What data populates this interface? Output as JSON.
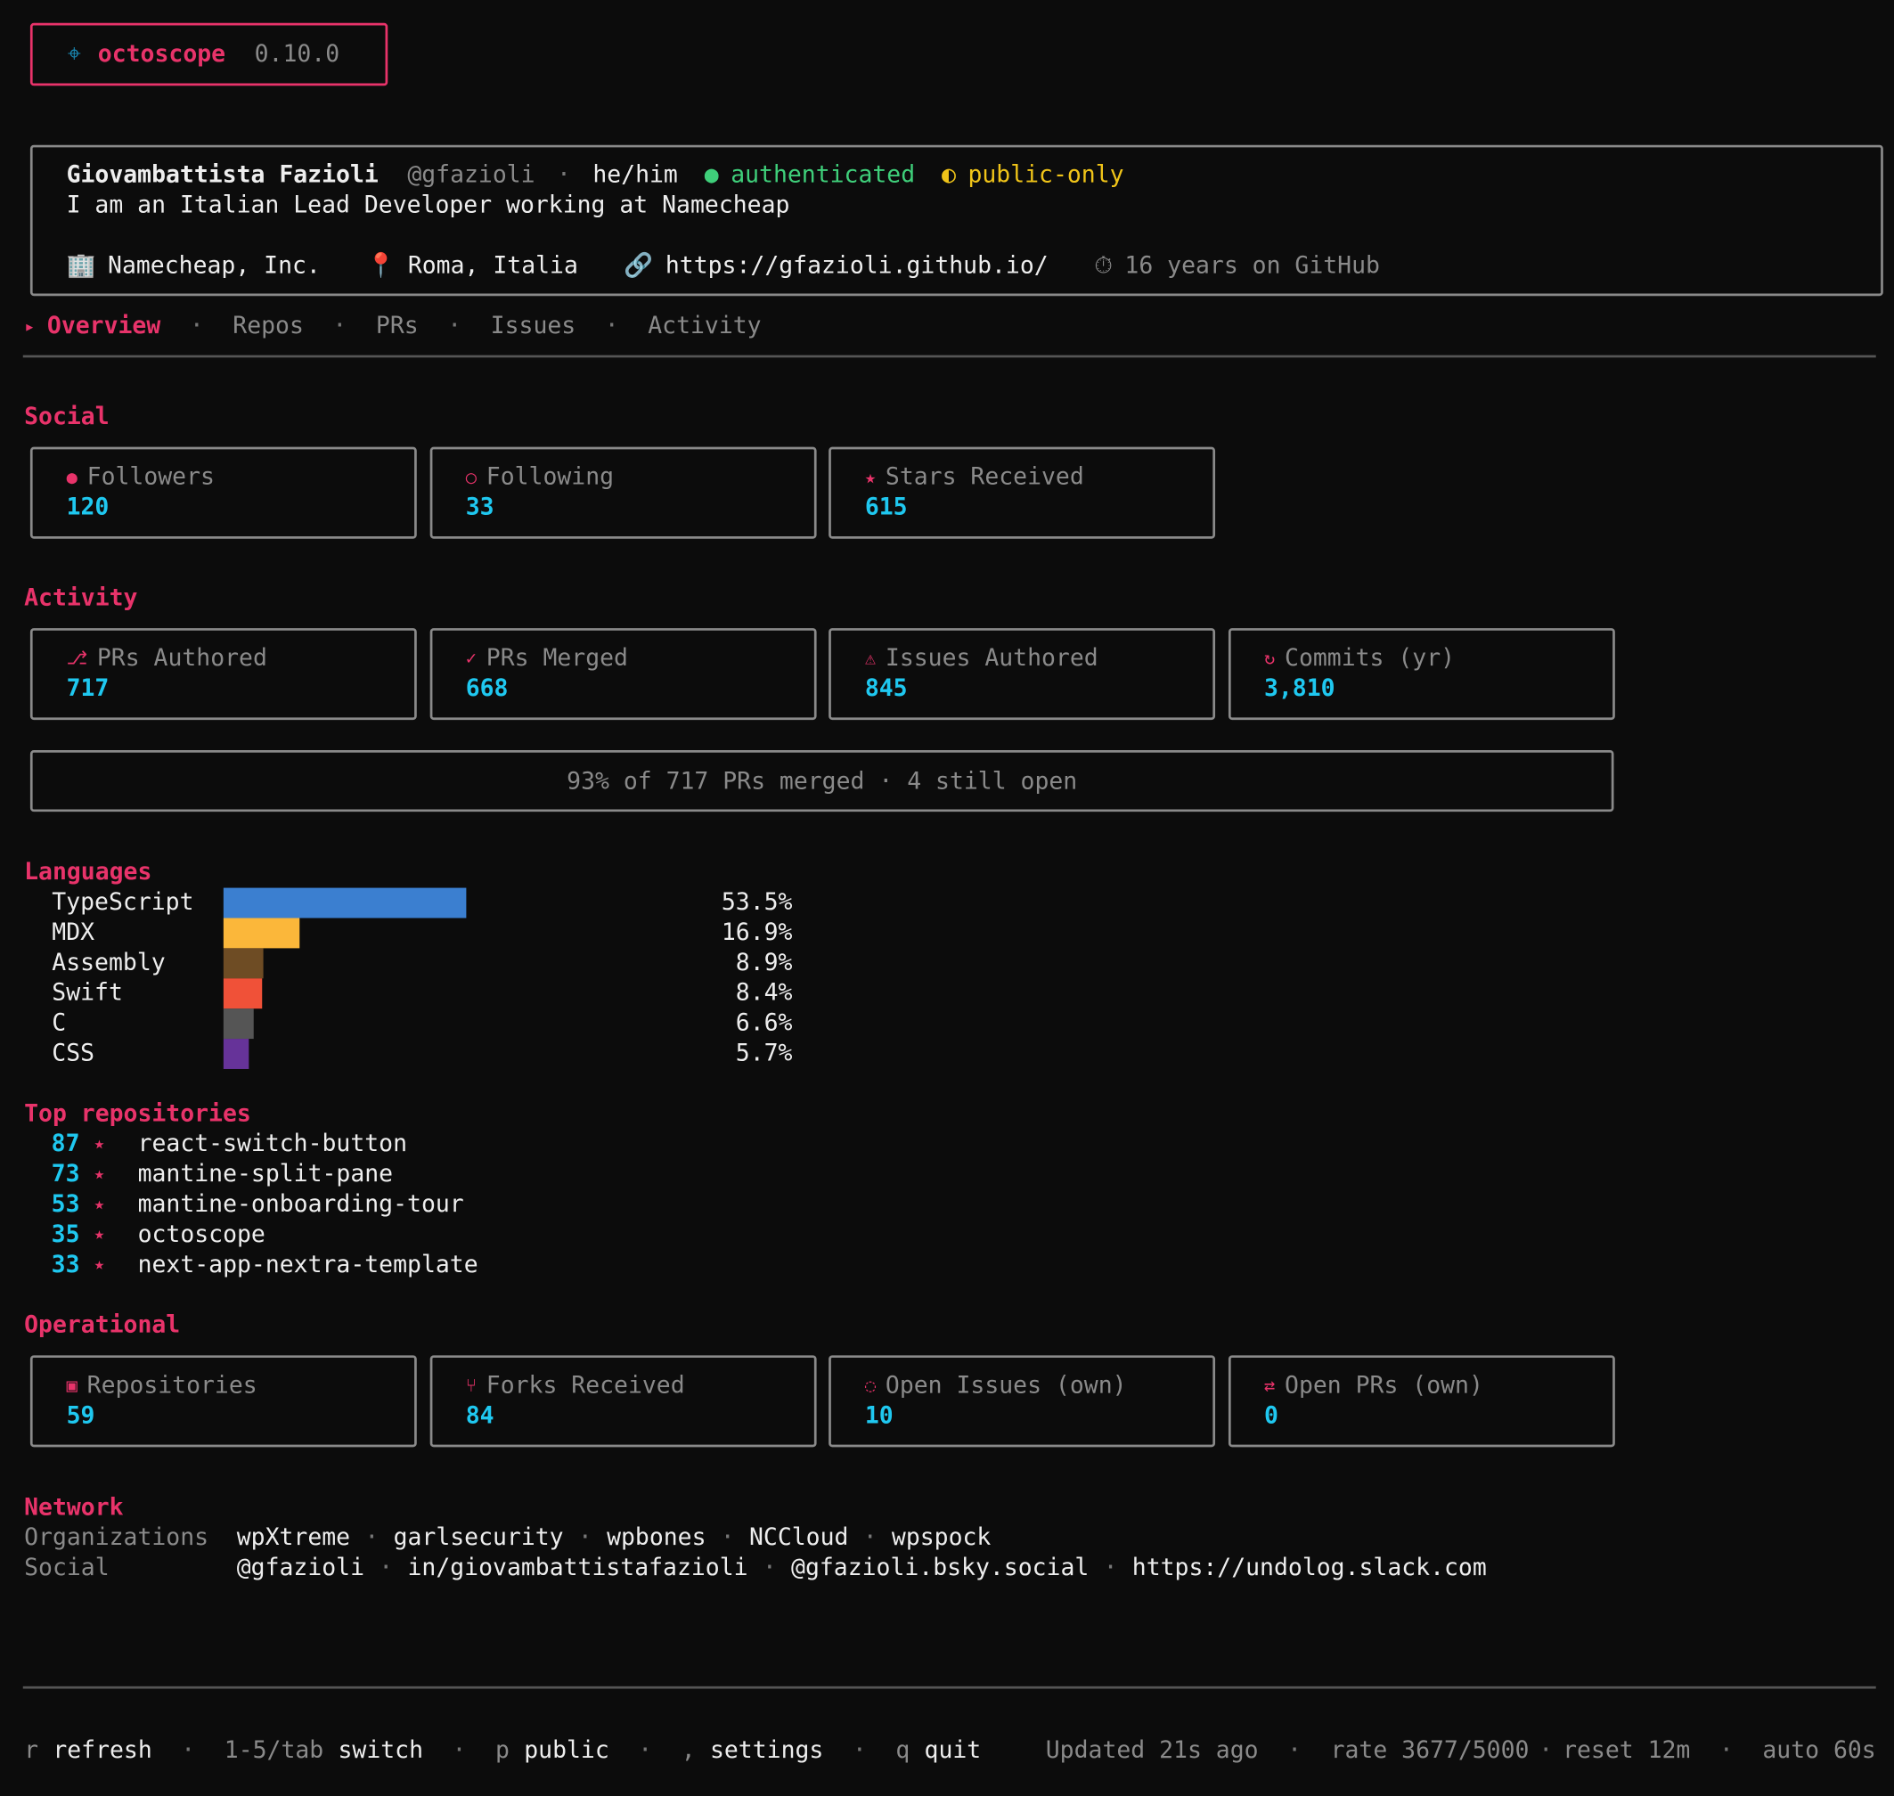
{
  "header": {
    "icon": "⌖",
    "app": "octoscope",
    "version": "0.10.0"
  },
  "profile": {
    "name": "Giovambattista Fazioli",
    "handle": "@gfazioli",
    "pronouns": "he/him",
    "auth_icon": "●",
    "auth": "authenticated",
    "scope_icon": "◐",
    "scope": "public-only",
    "bio": "I am an Italian Lead Developer working at Namecheap",
    "company_icon": "🏢",
    "company": "Namecheap, Inc.",
    "location_icon": "📍",
    "location": "Roma, Italia",
    "url_icon": "🔗",
    "url": "https://gfazioli.github.io/",
    "age_icon": "⏱",
    "age": "16 years on GitHub"
  },
  "tabs": {
    "marker": "▸",
    "items": [
      {
        "label": "Overview",
        "active": true
      },
      {
        "label": "Repos",
        "active": false
      },
      {
        "label": "PRs",
        "active": false
      },
      {
        "label": "Issues",
        "active": false
      },
      {
        "label": "Activity",
        "active": false
      }
    ]
  },
  "social": {
    "title": "Social",
    "cards": [
      {
        "icon": "●",
        "label": "Followers",
        "value": "120"
      },
      {
        "icon": "○",
        "label": "Following",
        "value": "33"
      },
      {
        "icon": "★",
        "label": "Stars Received",
        "value": "615"
      }
    ]
  },
  "activity": {
    "title": "Activity",
    "cards": [
      {
        "icon": "⎇",
        "label": "PRs Authored",
        "value": "717"
      },
      {
        "icon": "✓",
        "label": "PRs Merged",
        "value": "668"
      },
      {
        "icon": "⚠",
        "label": "Issues Authored",
        "value": "845"
      },
      {
        "icon": "↻",
        "label": "Commits (yr)",
        "value": "3,810"
      }
    ],
    "summary": "93% of 717 PRs merged · 4 still open"
  },
  "languages": {
    "title": "Languages",
    "items": [
      {
        "name": "TypeScript",
        "value": 53.5,
        "label": "53.5%",
        "color": "#3b7fd0"
      },
      {
        "name": "MDX",
        "value": 16.9,
        "label": "16.9%",
        "color": "#fbb73a"
      },
      {
        "name": "Assembly",
        "value": 8.9,
        "label": "8.9%",
        "color": "#6e4c24"
      },
      {
        "name": "Swift",
        "value": 8.4,
        "label": "8.4%",
        "color": "#f05138"
      },
      {
        "name": "C",
        "value": 6.6,
        "label": "6.6%",
        "color": "#555555"
      },
      {
        "name": "CSS",
        "value": 5.7,
        "label": "5.7%",
        "color": "#663399"
      }
    ]
  },
  "top_repositories": {
    "title": "Top repositories",
    "star": "★",
    "items": [
      {
        "stars": "87",
        "name": "react-switch-button"
      },
      {
        "stars": "73",
        "name": "mantine-split-pane"
      },
      {
        "stars": "53",
        "name": "mantine-onboarding-tour"
      },
      {
        "stars": "35",
        "name": "octoscope"
      },
      {
        "stars": "33",
        "name": "next-app-nextra-template"
      }
    ]
  },
  "operational": {
    "title": "Operational",
    "cards": [
      {
        "icon": "▣",
        "label": "Repositories",
        "value": "59"
      },
      {
        "icon": "⑂",
        "label": "Forks Received",
        "value": "84"
      },
      {
        "icon": "◌",
        "label": "Open Issues (own)",
        "value": "10"
      },
      {
        "icon": "⇄",
        "label": "Open PRs (own)",
        "value": "0"
      }
    ]
  },
  "network": {
    "title": "Network",
    "rows": [
      {
        "label": "Organizations",
        "items": [
          "wpXtreme",
          "garlsecurity",
          "wpbones",
          "NCCloud",
          "wpspock"
        ]
      },
      {
        "label": "Social",
        "items": [
          "@gfazioli",
          "in/giovambattistafazioli",
          "@gfazioli.bsky.social",
          "https://undolog.slack.com"
        ]
      }
    ]
  },
  "footer": {
    "keys": [
      {
        "key": "r",
        "action": "refresh"
      },
      {
        "key": "1-5/tab",
        "action": "switch"
      },
      {
        "key": "p",
        "action": "public"
      },
      {
        "key": ",",
        "action": "settings"
      },
      {
        "key": "q",
        "action": "quit"
      }
    ],
    "status": [
      "Updated 21s ago",
      "rate 3677/5000",
      "reset 12m",
      "auto 60s"
    ]
  }
}
